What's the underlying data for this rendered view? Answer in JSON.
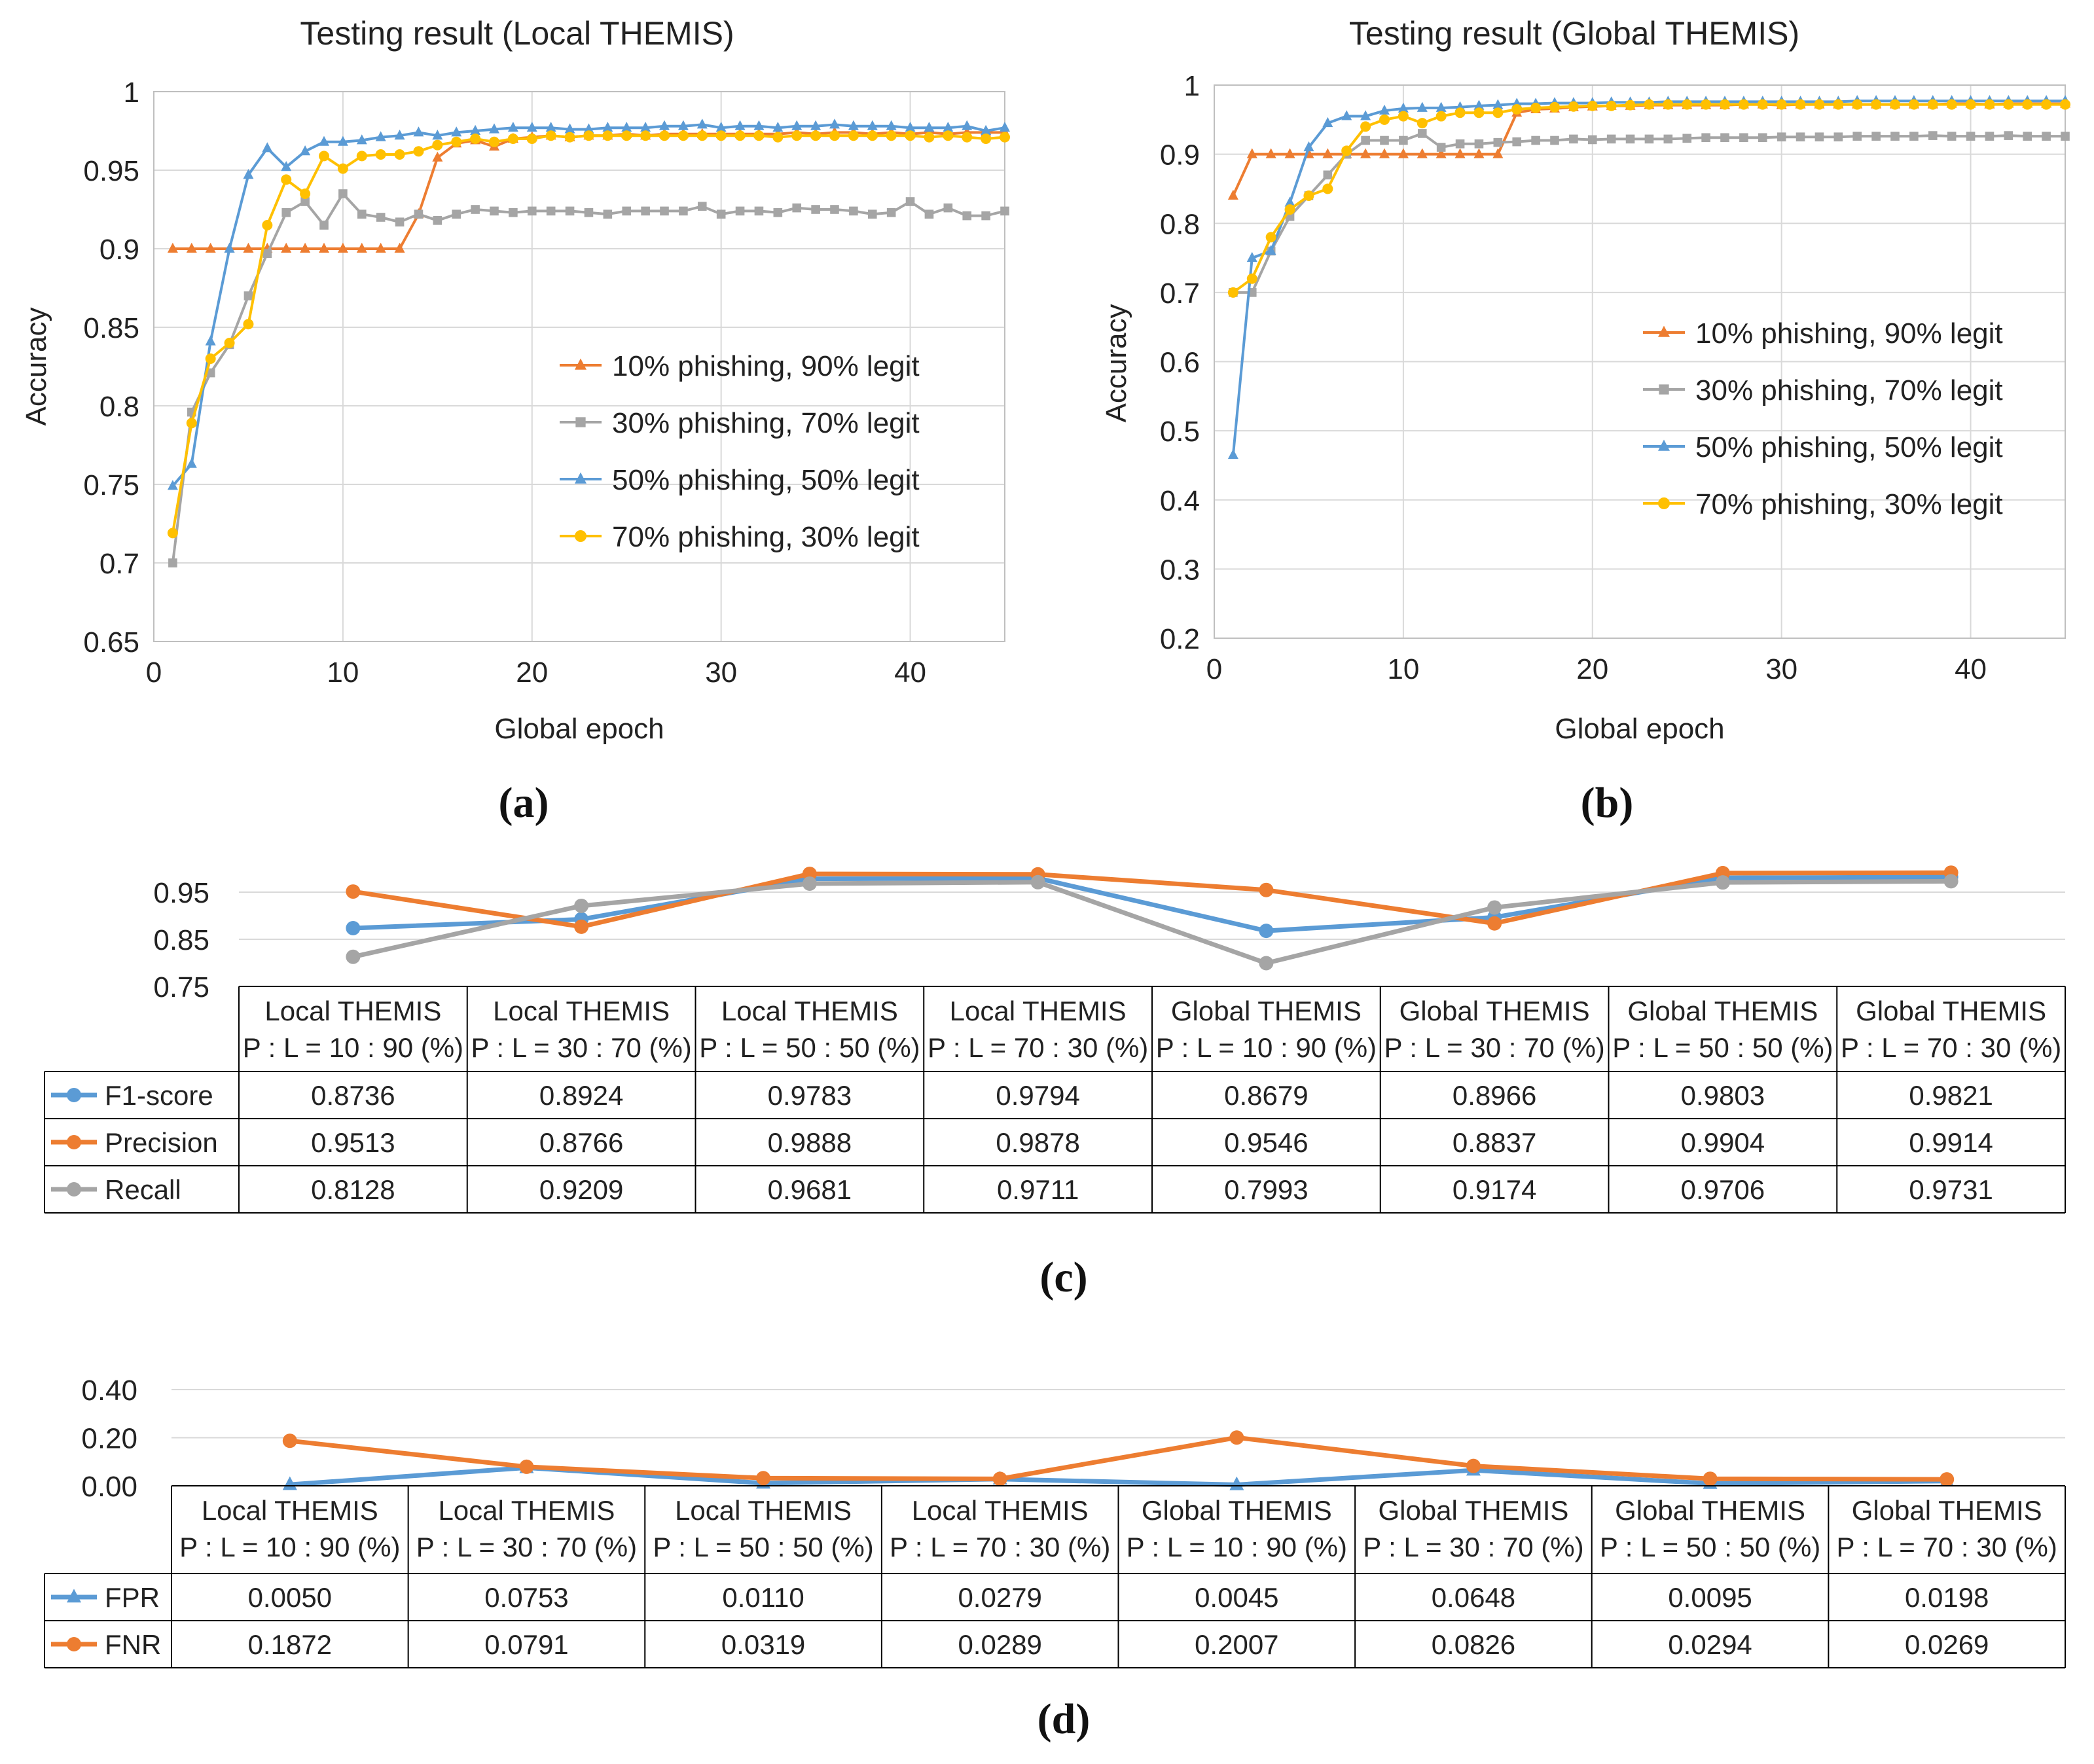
{
  "colors": {
    "orange": "#ED7D31",
    "gray": "#A5A5A5",
    "blue": "#5B9BD5",
    "yellow": "#FFC000",
    "grid": "#D9D9D9",
    "axis": "#BFBFBF",
    "table_border": "#000000"
  },
  "chart_data": [
    {
      "id": "a",
      "type": "line",
      "caption": "(a)",
      "title": "Testing result (Local THEMIS)",
      "xlabel": "Global epoch",
      "ylabel": "Accuracy",
      "xlim": [
        0,
        45
      ],
      "ylim": [
        0.65,
        1
      ],
      "xticks": [
        0,
        10,
        20,
        30,
        40
      ],
      "yticks": [
        0.65,
        0.7,
        0.75,
        0.8,
        0.85,
        0.9,
        0.95,
        1
      ],
      "ytick_labels": [
        "0.65",
        "0.7",
        "0.75",
        "0.8",
        "0.85",
        "0.9",
        "0.95",
        "1"
      ],
      "legend_position": "right",
      "series": [
        {
          "name": "10% phishing, 90% legit",
          "color": "#ED7D31",
          "marker": "triangle",
          "values": [
            0.9,
            0.9,
            0.9,
            0.9,
            0.9,
            0.9,
            0.9,
            0.9,
            0.9,
            0.9,
            0.9,
            0.9,
            0.9,
            0.922,
            0.958,
            0.967,
            0.969,
            0.965,
            0.97,
            0.971,
            0.972,
            0.971,
            0.972,
            0.972,
            0.973,
            0.972,
            0.973,
            0.973,
            0.973,
            0.973,
            0.973,
            0.973,
            0.973,
            0.974,
            0.973,
            0.974,
            0.974,
            0.973,
            0.974,
            0.973,
            0.974,
            0.973,
            0.974,
            0.974,
            0.974
          ]
        },
        {
          "name": "30% phishing, 70% legit",
          "color": "#A5A5A5",
          "marker": "square",
          "values": [
            0.7,
            0.796,
            0.821,
            0.839,
            0.87,
            0.897,
            0.923,
            0.93,
            0.915,
            0.935,
            0.922,
            0.92,
            0.917,
            0.922,
            0.918,
            0.922,
            0.925,
            0.924,
            0.923,
            0.924,
            0.924,
            0.924,
            0.923,
            0.922,
            0.924,
            0.924,
            0.924,
            0.924,
            0.927,
            0.922,
            0.924,
            0.924,
            0.923,
            0.926,
            0.925,
            0.925,
            0.924,
            0.922,
            0.923,
            0.93,
            0.922,
            0.926,
            0.921,
            0.921,
            0.924
          ]
        },
        {
          "name": "50% phishing, 50% legit",
          "color": "#5B9BD5",
          "marker": "triangle",
          "values": [
            0.749,
            0.763,
            0.841,
            0.9,
            0.947,
            0.964,
            0.952,
            0.962,
            0.968,
            0.968,
            0.969,
            0.971,
            0.972,
            0.974,
            0.972,
            0.974,
            0.975,
            0.976,
            0.977,
            0.977,
            0.977,
            0.976,
            0.976,
            0.977,
            0.977,
            0.977,
            0.978,
            0.978,
            0.979,
            0.977,
            0.978,
            0.978,
            0.977,
            0.978,
            0.978,
            0.979,
            0.978,
            0.978,
            0.978,
            0.977,
            0.977,
            0.977,
            0.978,
            0.975,
            0.977
          ]
        },
        {
          "name": "70% phishing, 30% legit",
          "color": "#FFC000",
          "marker": "circle",
          "values": [
            0.719,
            0.789,
            0.83,
            0.84,
            0.852,
            0.915,
            0.944,
            0.935,
            0.959,
            0.951,
            0.959,
            0.96,
            0.96,
            0.962,
            0.966,
            0.968,
            0.97,
            0.968,
            0.97,
            0.97,
            0.972,
            0.971,
            0.972,
            0.972,
            0.972,
            0.972,
            0.972,
            0.972,
            0.972,
            0.972,
            0.972,
            0.972,
            0.971,
            0.972,
            0.972,
            0.972,
            0.972,
            0.972,
            0.972,
            0.972,
            0.971,
            0.972,
            0.971,
            0.97,
            0.971
          ]
        }
      ]
    },
    {
      "id": "b",
      "type": "line",
      "caption": "(b)",
      "title": "Testing result (Global THEMIS)",
      "xlabel": "Global epoch",
      "ylabel": "Accuracy",
      "xlim": [
        0,
        45
      ],
      "ylim": [
        0.2,
        1
      ],
      "xticks": [
        0,
        10,
        20,
        30,
        40
      ],
      "yticks": [
        0.2,
        0.3,
        0.4,
        0.5,
        0.6,
        0.7,
        0.8,
        0.9,
        1
      ],
      "ytick_labels": [
        "0.2",
        "0.3",
        "0.4",
        "0.5",
        "0.6",
        "0.7",
        "0.8",
        "0.9",
        "1"
      ],
      "legend_position": "right",
      "series": [
        {
          "name": "10% phishing, 90% legit",
          "color": "#ED7D31",
          "marker": "triangle",
          "values": [
            0.84,
            0.9,
            0.9,
            0.9,
            0.9,
            0.9,
            0.9,
            0.9,
            0.9,
            0.9,
            0.9,
            0.9,
            0.9,
            0.9,
            0.9,
            0.96,
            0.965,
            0.966,
            0.968,
            0.969,
            0.97,
            0.97,
            0.971,
            0.971,
            0.971,
            0.971,
            0.971,
            0.972,
            0.972,
            0.971,
            0.972,
            0.972,
            0.972,
            0.972,
            0.972,
            0.972,
            0.972,
            0.972,
            0.973,
            0.973,
            0.972,
            0.973,
            0.973,
            0.973,
            0.973
          ]
        },
        {
          "name": "30% phishing, 70% legit",
          "color": "#A5A5A5",
          "marker": "square",
          "values": [
            0.7,
            0.7,
            0.76,
            0.81,
            0.84,
            0.87,
            0.9,
            0.92,
            0.92,
            0.92,
            0.93,
            0.91,
            0.915,
            0.915,
            0.917,
            0.918,
            0.92,
            0.92,
            0.922,
            0.921,
            0.922,
            0.922,
            0.922,
            0.922,
            0.923,
            0.924,
            0.924,
            0.924,
            0.924,
            0.925,
            0.925,
            0.925,
            0.925,
            0.926,
            0.926,
            0.926,
            0.926,
            0.927,
            0.926,
            0.926,
            0.926,
            0.927,
            0.926,
            0.926,
            0.926
          ]
        },
        {
          "name": "50% phishing, 50% legit",
          "color": "#5B9BD5",
          "marker": "triangle",
          "values": [
            0.465,
            0.75,
            0.76,
            0.83,
            0.91,
            0.945,
            0.955,
            0.955,
            0.963,
            0.966,
            0.967,
            0.967,
            0.968,
            0.97,
            0.971,
            0.973,
            0.973,
            0.974,
            0.974,
            0.974,
            0.975,
            0.975,
            0.975,
            0.976,
            0.976,
            0.976,
            0.976,
            0.976,
            0.976,
            0.976,
            0.976,
            0.976,
            0.976,
            0.977,
            0.977,
            0.977,
            0.977,
            0.977,
            0.977,
            0.977,
            0.977,
            0.977,
            0.977,
            0.977,
            0.977
          ]
        },
        {
          "name": "70% phishing, 30% legit",
          "color": "#FFC000",
          "marker": "circle",
          "values": [
            0.7,
            0.72,
            0.78,
            0.82,
            0.84,
            0.85,
            0.905,
            0.94,
            0.95,
            0.955,
            0.945,
            0.955,
            0.96,
            0.96,
            0.96,
            0.965,
            0.967,
            0.968,
            0.969,
            0.97,
            0.97,
            0.971,
            0.972,
            0.972,
            0.972,
            0.972,
            0.972,
            0.972,
            0.972,
            0.972,
            0.972,
            0.972,
            0.972,
            0.972,
            0.972,
            0.972,
            0.972,
            0.972,
            0.972,
            0.972,
            0.972,
            0.972,
            0.972,
            0.972,
            0.972
          ]
        }
      ]
    },
    {
      "id": "c",
      "type": "table",
      "caption": "(c)",
      "ylim": [
        0.75,
        1.0
      ],
      "yticks": [
        0.75,
        0.85,
        0.95
      ],
      "ytick_labels": [
        "0.75",
        "0.85",
        "0.95"
      ],
      "columns": [
        {
          "line1": "Local THEMIS",
          "line2": "P : L = 10 : 90 (%)"
        },
        {
          "line1": "Local THEMIS",
          "line2": "P : L = 30 : 70 (%)"
        },
        {
          "line1": "Local THEMIS",
          "line2": "P : L = 50 : 50 (%)"
        },
        {
          "line1": "Local THEMIS",
          "line2": "P : L = 70 : 30 (%)"
        },
        {
          "line1": "Global THEMIS",
          "line2": "P : L = 10 : 90 (%)"
        },
        {
          "line1": "Global THEMIS",
          "line2": "P : L = 30 : 70 (%)"
        },
        {
          "line1": "Global THEMIS",
          "line2": "P : L = 50 : 50 (%)"
        },
        {
          "line1": "Global THEMIS",
          "line2": "P : L = 70 : 30 (%)"
        }
      ],
      "series": [
        {
          "name": "F1-score",
          "color": "#5B9BD5",
          "marker": "circle",
          "values": [
            0.8736,
            0.8924,
            0.9783,
            0.9794,
            0.8679,
            0.8966,
            0.9803,
            0.9821
          ],
          "labels": [
            "0.8736",
            "0.8924",
            "0.9783",
            "0.9794",
            "0.8679",
            "0.8966",
            "0.9803",
            "0.9821"
          ]
        },
        {
          "name": "Precision",
          "color": "#ED7D31",
          "marker": "circle",
          "values": [
            0.9513,
            0.8766,
            0.9888,
            0.9878,
            0.9546,
            0.8837,
            0.9904,
            0.9914
          ],
          "labels": [
            "0.9513",
            "0.8766",
            "0.9888",
            "0.9878",
            "0.9546",
            "0.8837",
            "0.9904",
            "0.9914"
          ]
        },
        {
          "name": "Recall",
          "color": "#A5A5A5",
          "marker": "circle",
          "values": [
            0.8128,
            0.9209,
            0.9681,
            0.9711,
            0.7993,
            0.9174,
            0.9706,
            0.9731
          ],
          "labels": [
            "0.8128",
            "0.9209",
            "0.9681",
            "0.9711",
            "0.7993",
            "0.9174",
            "0.9706",
            "0.9731"
          ]
        }
      ]
    },
    {
      "id": "d",
      "type": "table",
      "caption": "(d)",
      "ylim": [
        0.0,
        0.4
      ],
      "yticks": [
        0.0,
        0.2,
        0.4
      ],
      "ytick_labels": [
        "0.00",
        "0.20",
        "0.40"
      ],
      "columns": [
        {
          "line1": "Local THEMIS",
          "line2": "P : L = 10 : 90 (%)"
        },
        {
          "line1": "Local THEMIS",
          "line2": "P : L = 30 : 70 (%)"
        },
        {
          "line1": "Local THEMIS",
          "line2": "P : L = 50 : 50 (%)"
        },
        {
          "line1": "Local THEMIS",
          "line2": "P : L = 70 : 30 (%)"
        },
        {
          "line1": "Global THEMIS",
          "line2": "P : L = 10 : 90 (%)"
        },
        {
          "line1": "Global THEMIS",
          "line2": "P : L = 30 : 70 (%)"
        },
        {
          "line1": "Global THEMIS",
          "line2": "P : L = 50 : 50 (%)"
        },
        {
          "line1": "Global THEMIS",
          "line2": "P : L = 70 : 30 (%)"
        }
      ],
      "series": [
        {
          "name": "FPR",
          "color": "#5B9BD5",
          "marker": "triangle",
          "values": [
            0.005,
            0.0753,
            0.011,
            0.0279,
            0.0045,
            0.0648,
            0.0095,
            0.0198
          ],
          "labels": [
            "0.0050",
            "0.0753",
            "0.0110",
            "0.0279",
            "0.0045",
            "0.0648",
            "0.0095",
            "0.0198"
          ]
        },
        {
          "name": "FNR",
          "color": "#ED7D31",
          "marker": "circle",
          "values": [
            0.1872,
            0.0791,
            0.0319,
            0.0289,
            0.2007,
            0.0826,
            0.0294,
            0.0269
          ],
          "labels": [
            "0.1872",
            "0.0791",
            "0.0319",
            "0.0289",
            "0.2007",
            "0.0826",
            "0.0294",
            "0.0269"
          ]
        }
      ]
    }
  ]
}
